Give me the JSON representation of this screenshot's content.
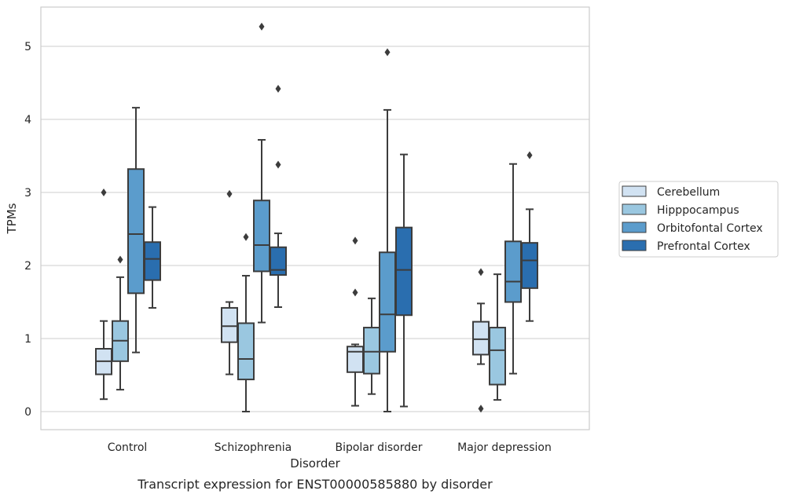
{
  "chart_data": {
    "type": "box",
    "xlabel": "Disorder",
    "ylabel": "TPMs",
    "caption": "Transcript expression for ENST00000585880 by disorder",
    "ylim": [
      -0.25,
      5.5
    ],
    "yticks": [
      0,
      1,
      2,
      3,
      4,
      5
    ],
    "grid": true,
    "legend_position": "right",
    "categories": [
      "Control",
      "Schizophrenia",
      "Bipolar disorder",
      "Major depression"
    ],
    "series": [
      {
        "name": "Cerebellum",
        "color": "#d1e2f2",
        "boxes": [
          {
            "whisker_low": 0.17,
            "q1": 0.51,
            "median": 0.69,
            "q3": 0.86,
            "whisker_high": 1.24,
            "outliers": [
              3.0
            ]
          },
          {
            "whisker_low": 0.51,
            "q1": 0.95,
            "median": 1.17,
            "q3": 1.42,
            "whisker_high": 1.5,
            "outliers": [
              2.98
            ]
          },
          {
            "whisker_low": 0.08,
            "q1": 0.54,
            "median": 0.82,
            "q3": 0.89,
            "whisker_high": 0.92,
            "outliers": [
              1.63,
              2.34
            ]
          },
          {
            "whisker_low": 0.65,
            "q1": 0.78,
            "median": 0.99,
            "q3": 1.23,
            "whisker_high": 1.48,
            "outliers": [
              0.04,
              1.91
            ]
          }
        ]
      },
      {
        "name": "Hipppocampus",
        "color": "#9ac7e0",
        "boxes": [
          {
            "whisker_low": 0.3,
            "q1": 0.69,
            "median": 0.97,
            "q3": 1.24,
            "whisker_high": 1.84,
            "outliers": [
              2.08
            ]
          },
          {
            "whisker_low": 0.0,
            "q1": 0.44,
            "median": 0.72,
            "q3": 1.21,
            "whisker_high": 1.86,
            "outliers": [
              2.39
            ]
          },
          {
            "whisker_low": 0.24,
            "q1": 0.52,
            "median": 0.82,
            "q3": 1.15,
            "whisker_high": 1.55,
            "outliers": []
          },
          {
            "whisker_low": 0.16,
            "q1": 0.37,
            "median": 0.84,
            "q3": 1.15,
            "whisker_high": 1.88,
            "outliers": []
          }
        ]
      },
      {
        "name": "Orbitofontal Cortex",
        "color": "#5b9ccc",
        "boxes": [
          {
            "whisker_low": 0.81,
            "q1": 1.62,
            "median": 2.43,
            "q3": 3.32,
            "whisker_high": 4.16,
            "outliers": []
          },
          {
            "whisker_low": 1.22,
            "q1": 1.92,
            "median": 2.28,
            "q3": 2.89,
            "whisker_high": 3.72,
            "outliers": [
              5.27
            ]
          },
          {
            "whisker_low": 0.0,
            "q1": 0.82,
            "median": 1.33,
            "q3": 2.18,
            "whisker_high": 4.13,
            "outliers": [
              4.92
            ]
          },
          {
            "whisker_low": 0.52,
            "q1": 1.5,
            "median": 1.78,
            "q3": 2.33,
            "whisker_high": 3.39,
            "outliers": []
          }
        ]
      },
      {
        "name": "Prefrontal Cortex",
        "color": "#2a6eaf",
        "boxes": [
          {
            "whisker_low": 1.42,
            "q1": 1.8,
            "median": 2.09,
            "q3": 2.32,
            "whisker_high": 2.8,
            "outliers": []
          },
          {
            "whisker_low": 1.43,
            "q1": 1.87,
            "median": 1.94,
            "q3": 2.25,
            "whisker_high": 2.44,
            "outliers": [
              3.38,
              4.42
            ]
          },
          {
            "whisker_low": 0.07,
            "q1": 1.32,
            "median": 1.94,
            "q3": 2.52,
            "whisker_high": 3.52,
            "outliers": []
          },
          {
            "whisker_low": 1.24,
            "q1": 1.69,
            "median": 2.07,
            "q3": 2.31,
            "whisker_high": 2.77,
            "outliers": [
              3.51
            ]
          }
        ]
      }
    ]
  }
}
